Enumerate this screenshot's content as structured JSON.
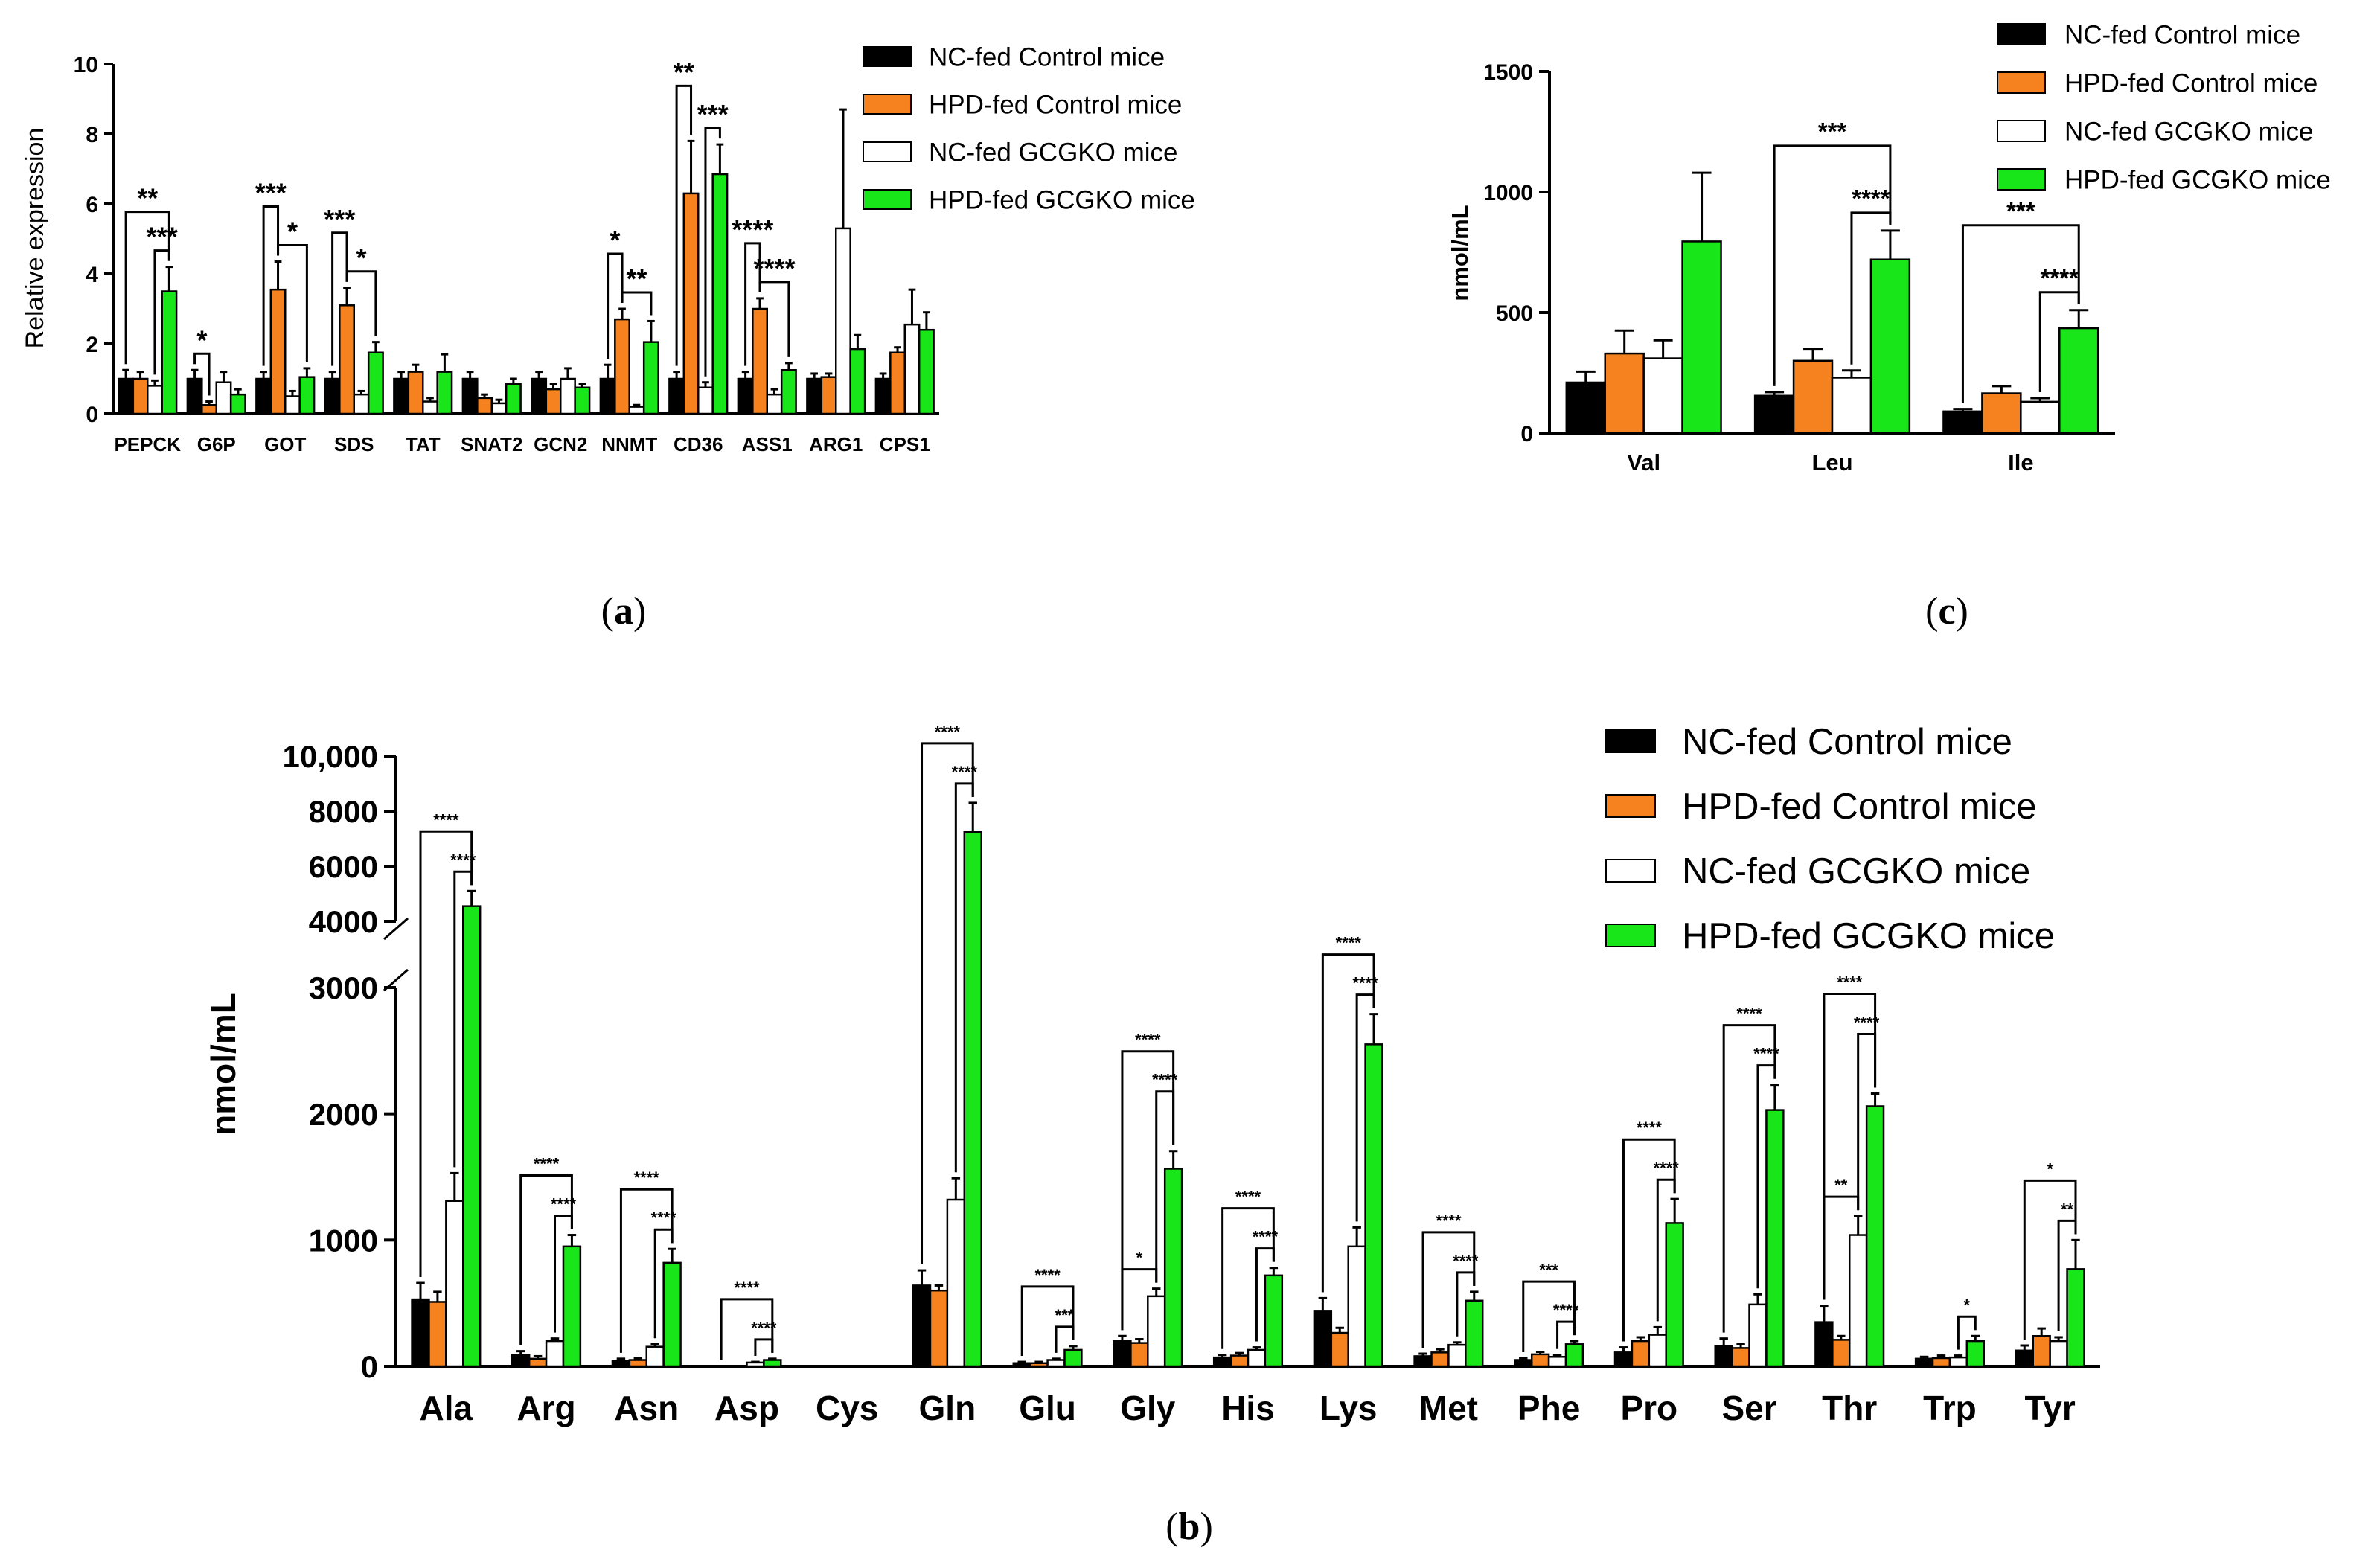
{
  "legend_labels": [
    "NC-fed Control mice",
    "HPD-fed Control mice",
    "NC-fed GCGKO mice",
    "HPD-fed GCGKO mice"
  ],
  "colors": {
    "nc_control": "#000000",
    "hpd_control": "#F5821F",
    "nc_gcgko": "#FFFFFF",
    "hpd_gcgko": "#19E619"
  },
  "panel_labels": {
    "a": "a",
    "b": "b",
    "c": "c"
  },
  "chart_data": [
    {
      "id": "a",
      "type": "bar",
      "title": "",
      "xlabel": "",
      "ylabel": "Relative expression",
      "ylim": [
        0,
        10
      ],
      "yticks": [
        "0",
        "2",
        "4",
        "6",
        "8",
        "10"
      ],
      "categories": [
        "PEPCK",
        "G6P",
        "GOT",
        "SDS",
        "TAT",
        "SNAT2",
        "GCN2",
        "NNMT",
        "CD36",
        "ASS1",
        "ARG1",
        "CPS1"
      ],
      "series": [
        {
          "name": "NC-fed Control mice",
          "values": [
            1.0,
            1.0,
            1.0,
            1.0,
            1.0,
            1.0,
            1.0,
            1.0,
            1.0,
            1.0,
            1.0,
            1.0
          ],
          "errors": [
            0.25,
            0.25,
            0.2,
            0.2,
            0.2,
            0.2,
            0.2,
            0.4,
            0.2,
            0.2,
            0.15,
            0.15
          ]
        },
        {
          "name": "HPD-fed Control mice",
          "values": [
            1.0,
            0.25,
            3.55,
            3.1,
            1.2,
            0.45,
            0.7,
            2.7,
            6.3,
            3.0,
            1.05,
            1.75
          ]
        },
        {
          "name": "NC-fed GCGKO mice",
          "values": [
            0.8,
            0.9,
            0.5,
            0.55,
            0.35,
            0.3,
            1.0,
            0.2,
            0.75,
            0.55,
            5.3,
            2.55
          ]
        },
        {
          "name": "HPD-fed GCGKO mice",
          "values": [
            3.5,
            0.55,
            1.05,
            1.75,
            1.2,
            0.85,
            0.75,
            2.05,
            6.85,
            1.25,
            1.85,
            2.4
          ]
        }
      ],
      "errors": [
        [
          0.25,
          0.25,
          0.2,
          0.2,
          0.2,
          0.2,
          0.2,
          0.4,
          0.2,
          0.2,
          0.15,
          0.15
        ],
        [
          0.2,
          0.1,
          0.8,
          0.5,
          0.2,
          0.1,
          0.15,
          0.3,
          1.5,
          0.3,
          0.1,
          0.15
        ],
        [
          0.15,
          0.3,
          0.15,
          0.1,
          0.1,
          0.1,
          0.3,
          0.05,
          0.15,
          0.15,
          3.4,
          1.0
        ],
        [
          0.7,
          0.15,
          0.25,
          0.3,
          0.5,
          0.15,
          0.1,
          0.6,
          0.85,
          0.2,
          0.4,
          0.5
        ]
      ],
      "significance": [
        {
          "category": "PEPCK",
          "from": 0,
          "to": 3,
          "label": "**",
          "level": 1
        },
        {
          "category": "PEPCK",
          "from": 2,
          "to": 3,
          "label": "***",
          "level": 0
        },
        {
          "category": "G6P",
          "from": 0,
          "to": 1,
          "label": "*",
          "level": 0
        },
        {
          "category": "GOT",
          "from": 0,
          "to": 1,
          "label": "***",
          "level": 1
        },
        {
          "category": "GOT",
          "from": 1,
          "to": 3,
          "label": "*",
          "level": 0
        },
        {
          "category": "SDS",
          "from": 0,
          "to": 1,
          "label": "***",
          "level": 1
        },
        {
          "category": "SDS",
          "from": 1,
          "to": 3,
          "label": "*",
          "level": 0
        },
        {
          "category": "NNMT",
          "from": 0,
          "to": 1,
          "label": "*",
          "level": 1
        },
        {
          "category": "NNMT",
          "from": 1,
          "to": 3,
          "label": "**",
          "level": 0
        },
        {
          "category": "CD36",
          "from": 0,
          "to": 1,
          "label": "**",
          "level": 1
        },
        {
          "category": "CD36",
          "from": 2,
          "to": 3,
          "label": "***",
          "level": 0
        },
        {
          "category": "ASS1",
          "from": 0,
          "to": 1,
          "label": "****",
          "level": 1
        },
        {
          "category": "ASS1",
          "from": 1,
          "to": 3,
          "label": "****",
          "level": 0
        }
      ]
    },
    {
      "id": "c",
      "type": "bar",
      "title": "",
      "xlabel": "",
      "ylabel": "nmol/mL",
      "ylim": [
        0,
        1500
      ],
      "yticks": [
        "0",
        "500",
        "1000",
        "1500"
      ],
      "categories": [
        "Val",
        "Leu",
        "Ile"
      ],
      "series": [
        {
          "name": "NC-fed Control mice",
          "values": [
            210,
            155,
            90
          ]
        },
        {
          "name": "HPD-fed Control mice",
          "values": [
            330,
            300,
            165
          ]
        },
        {
          "name": "NC-fed GCGKO mice",
          "values": [
            310,
            230,
            130
          ]
        },
        {
          "name": "HPD-fed GCGKO mice",
          "values": [
            795,
            720,
            435
          ]
        }
      ],
      "errors": [
        [
          45,
          15,
          10
        ],
        [
          95,
          50,
          30
        ],
        [
          75,
          30,
          15
        ],
        [
          285,
          120,
          75
        ]
      ],
      "significance": [
        {
          "category": "Leu",
          "from": 0,
          "to": 3,
          "label": "***",
          "level": 1
        },
        {
          "category": "Leu",
          "from": 2,
          "to": 3,
          "label": "****",
          "level": 0
        },
        {
          "category": "Ile",
          "from": 0,
          "to": 3,
          "label": "***",
          "level": 1
        },
        {
          "category": "Ile",
          "from": 2,
          "to": 3,
          "label": "****",
          "level": 0
        }
      ]
    },
    {
      "id": "b",
      "type": "bar",
      "title": "",
      "xlabel": "",
      "ylabel": "nmol/mL",
      "ylim": [
        0,
        10000
      ],
      "axis_break": [
        3000,
        4000
      ],
      "yticks_lower": [
        "0",
        "1000",
        "2000",
        "3000"
      ],
      "yticks_upper": [
        "4000",
        "6000",
        "8000",
        "10,000"
      ],
      "categories": [
        "Ala",
        "Arg",
        "Asn",
        "Asp",
        "Cys",
        "Gln",
        "Glu",
        "Gly",
        "His",
        "Lys",
        "Met",
        "Phe",
        "Pro",
        "Ser",
        "Thr",
        "Trp",
        "Tyr"
      ],
      "series": [
        {
          "name": "NC-fed Control mice",
          "values": [
            530,
            90,
            45,
            0,
            0,
            640,
            25,
            200,
            70,
            440,
            80,
            50,
            110,
            160,
            350,
            60,
            125
          ]
        },
        {
          "name": "HPD-fed Control mice",
          "values": [
            510,
            60,
            50,
            0,
            0,
            600,
            25,
            185,
            85,
            265,
            110,
            95,
            200,
            145,
            210,
            65,
            240
          ]
        },
        {
          "name": "NC-fed GCGKO mice",
          "values": [
            1310,
            200,
            155,
            30,
            0,
            1320,
            50,
            555,
            130,
            950,
            170,
            75,
            250,
            490,
            1040,
            70,
            200
          ]
        },
        {
          "name": "HPD-fed GCGKO mice",
          "values": [
            4550,
            950,
            820,
            50,
            0,
            7250,
            130,
            1565,
            720,
            2550,
            520,
            175,
            1135,
            2030,
            2060,
            200,
            770
          ]
        }
      ],
      "errors": [
        [
          130,
          30,
          15,
          0,
          0,
          120,
          10,
          40,
          20,
          100,
          20,
          15,
          40,
          60,
          130,
          15,
          40
        ],
        [
          80,
          20,
          15,
          0,
          0,
          40,
          10,
          30,
          20,
          40,
          25,
          20,
          30,
          30,
          30,
          20,
          60
        ],
        [
          220,
          20,
          20,
          5,
          0,
          170,
          10,
          60,
          20,
          150,
          20,
          15,
          60,
          80,
          150,
          15,
          30
        ],
        [
          550,
          90,
          110,
          10,
          0,
          1050,
          30,
          140,
          60,
          240,
          70,
          25,
          190,
          200,
          100,
          40,
          230
        ]
      ],
      "significance": [
        {
          "category": "Ala",
          "from": 0,
          "to": 3,
          "label": "****",
          "level": 1
        },
        {
          "category": "Ala",
          "from": 2,
          "to": 3,
          "label": "****",
          "level": 0
        },
        {
          "category": "Arg",
          "from": 0,
          "to": 3,
          "label": "****",
          "level": 1
        },
        {
          "category": "Arg",
          "from": 2,
          "to": 3,
          "label": "****",
          "level": 0
        },
        {
          "category": "Asn",
          "from": 0,
          "to": 3,
          "label": "****",
          "level": 1
        },
        {
          "category": "Asn",
          "from": 2,
          "to": 3,
          "label": "****",
          "level": 0
        },
        {
          "category": "Asp",
          "from": 0,
          "to": 3,
          "label": "****",
          "level": 1
        },
        {
          "category": "Asp",
          "from": 2,
          "to": 3,
          "label": "****",
          "level": 0
        },
        {
          "category": "Gln",
          "from": 0,
          "to": 3,
          "label": "****",
          "level": 1
        },
        {
          "category": "Gln",
          "from": 2,
          "to": 3,
          "label": "****",
          "level": 0
        },
        {
          "category": "Glu",
          "from": 0,
          "to": 3,
          "label": "****",
          "level": 1
        },
        {
          "category": "Glu",
          "from": 2,
          "to": 3,
          "label": "***",
          "level": 0
        },
        {
          "category": "Gly",
          "from": 0,
          "to": 2,
          "label": "*",
          "level": 0
        },
        {
          "category": "Gly",
          "from": 0,
          "to": 3,
          "label": "****",
          "level": 2
        },
        {
          "category": "Gly",
          "from": 2,
          "to": 3,
          "label": "****",
          "level": 1
        },
        {
          "category": "His",
          "from": 0,
          "to": 3,
          "label": "****",
          "level": 1
        },
        {
          "category": "His",
          "from": 2,
          "to": 3,
          "label": "****",
          "level": 0
        },
        {
          "category": "Lys",
          "from": 0,
          "to": 3,
          "label": "****",
          "level": 1
        },
        {
          "category": "Lys",
          "from": 2,
          "to": 3,
          "label": "****",
          "level": 0
        },
        {
          "category": "Met",
          "from": 0,
          "to": 3,
          "label": "****",
          "level": 1
        },
        {
          "category": "Met",
          "from": 2,
          "to": 3,
          "label": "****",
          "level": 0
        },
        {
          "category": "Phe",
          "from": 0,
          "to": 3,
          "label": "***",
          "level": 1
        },
        {
          "category": "Phe",
          "from": 2,
          "to": 3,
          "label": "****",
          "level": 0
        },
        {
          "category": "Pro",
          "from": 0,
          "to": 3,
          "label": "****",
          "level": 1
        },
        {
          "category": "Pro",
          "from": 2,
          "to": 3,
          "label": "****",
          "level": 0
        },
        {
          "category": "Ser",
          "from": 0,
          "to": 3,
          "label": "****",
          "level": 1
        },
        {
          "category": "Ser",
          "from": 2,
          "to": 3,
          "label": "****",
          "level": 0
        },
        {
          "category": "Thr",
          "from": 0,
          "to": 2,
          "label": "**",
          "level": 0
        },
        {
          "category": "Thr",
          "from": 0,
          "to": 3,
          "label": "****",
          "level": 2
        },
        {
          "category": "Thr",
          "from": 2,
          "to": 3,
          "label": "****",
          "level": 1
        },
        {
          "category": "Trp",
          "from": 2,
          "to": 3,
          "label": "*",
          "level": 0
        },
        {
          "category": "Tyr",
          "from": 0,
          "to": 3,
          "label": "*",
          "level": 1
        },
        {
          "category": "Tyr",
          "from": 2,
          "to": 3,
          "label": "**",
          "level": 0
        }
      ]
    }
  ]
}
